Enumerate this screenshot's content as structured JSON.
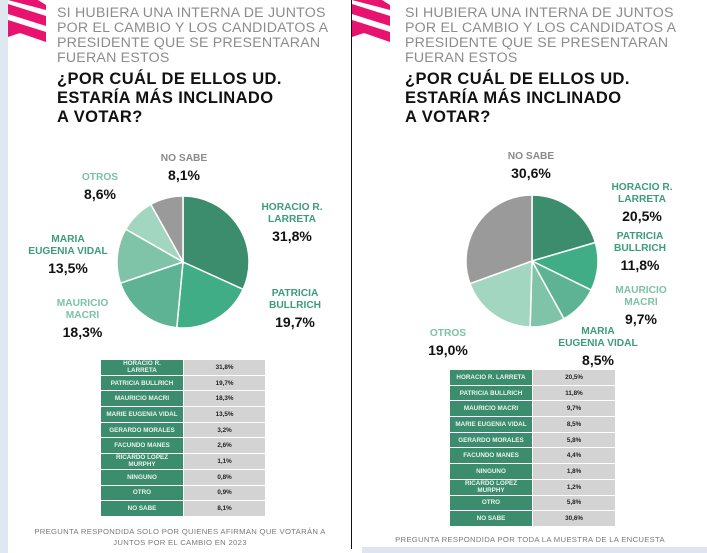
{
  "colors": {
    "accent_pink": "#e8126f",
    "slice_1": "#3b8d6e",
    "slice_2": "#41ad87",
    "slice_3": "#5db393",
    "slice_4": "#7fc4a8",
    "slice_5": "#a3d6c1",
    "slice_gray": "#9a9a9a",
    "label_green": "#3d9c7a",
    "label_light_green": "#7cc2a6",
    "label_gray": "#8a8a8a"
  },
  "panels": [
    {
      "intro": "SI HUBIERA UNA INTERNA DE JUNTOS\nPOR EL CAMBIO Y LOS CANDIDATOS A\nPRESIDENTE QUE SE PRESENTARAN\nFUERAN ESTOS",
      "question": "¿POR CUÁL DE ELLOS UD.\nESTARÍA MÁS  INCLINADO\nA VOTAR?",
      "footnote": "PREGUNTA RESPONDIDA SOLO POR QUIENES AFIRMAN QUE VOTARÁN A\nJUNTOS POR EL CAMBIO EN 2023",
      "table": [
        {
          "name": "HORACIO R.\nLARRETA",
          "value": "31,8%"
        },
        {
          "name": "PATRICIA BULLRICH",
          "value": "19,7%"
        },
        {
          "name": "MAURICIO MACRI",
          "value": "18,3%"
        },
        {
          "name": "MARIE EUGENIA VIDAL",
          "value": "13,5%"
        },
        {
          "name": "GERARDO MORALES",
          "value": "3,2%"
        },
        {
          "name": "FACUNDO MANES",
          "value": "2,6%"
        },
        {
          "name": "RICARDO LÓPEZ\nMURPHY",
          "value": "1,1%"
        },
        {
          "name": "NINGUNO",
          "value": "0,8%"
        },
        {
          "name": "OTRO",
          "value": "0,9%"
        },
        {
          "name": "NO SABE",
          "value": "8,1%"
        }
      ],
      "pie_labels": [
        {
          "name": "HORACIO R.\nLARRETA",
          "pct": "31,8%"
        },
        {
          "name": "PATRICIA\nBULLRICH",
          "pct": "19,7%"
        },
        {
          "name": "MAURICIO\nMACRI",
          "pct": "18,3%"
        },
        {
          "name": "MARIA\nEUGENIA VIDAL",
          "pct": "13,5%"
        },
        {
          "name": "OTROS",
          "pct": "8,6%"
        },
        {
          "name": "NO SABE",
          "pct": "8,1%"
        }
      ]
    },
    {
      "intro": "SI HUBIERA UNA INTERNA DE JUNTOS\nPOR EL CAMBIO Y LOS CANDIDATOS A\nPRESIDENTE QUE SE PRESENTARAN\nFUERAN ESTOS",
      "question": "¿POR CUÁL DE ELLOS UD.\nESTARÍA MÁS  INCLINADO\nA VOTAR?",
      "footnote": "PREGUNTA RESPONDIDA POR TODA LA MUESTRA DE LA ENCUESTA",
      "table": [
        {
          "name": "HORACIO R. LARRETA",
          "value": "20,5%"
        },
        {
          "name": "PATRICIA BULLRICH",
          "value": "11,8%"
        },
        {
          "name": "MAURICIO MACRI",
          "value": "9,7%"
        },
        {
          "name": "MARIE EUGENIA VIDAL",
          "value": "8,5%"
        },
        {
          "name": "GERARDO MORALES",
          "value": "5,8%"
        },
        {
          "name": "FACUNDO MANES",
          "value": "4,4%"
        },
        {
          "name": "NINGUNO",
          "value": "1,8%"
        },
        {
          "name": "RICARDO LÓPEZ\nMURPHY",
          "value": "1,2%"
        },
        {
          "name": "OTRO",
          "value": "5,8%"
        },
        {
          "name": "NO SABE",
          "value": "30,6%"
        }
      ],
      "pie_labels": [
        {
          "name": "HORACIO R.\nLARRETA",
          "pct": "20,5%"
        },
        {
          "name": "PATRICIA\nBULLRICH",
          "pct": "11,8%"
        },
        {
          "name": "MAURICIO\nMACRI",
          "pct": "9,7%"
        },
        {
          "name": "MARIA\nEUGENIA VIDAL",
          "pct": "8,5%"
        },
        {
          "name": "OTROS",
          "pct": "19,0%"
        },
        {
          "name": "NO SABE",
          "pct": "30,6%"
        }
      ]
    }
  ],
  "chart_data": [
    {
      "type": "pie",
      "title": "¿Por cuál de ellos Ud. estaría más inclinado a votar? (votantes de Juntos por el Cambio)",
      "categories": [
        "HORACIO R. LARRETA",
        "PATRICIA BULLRICH",
        "MAURICIO MACRI",
        "MARIA EUGENIA VIDAL",
        "OTROS",
        "NO SABE"
      ],
      "values": [
        31.8,
        19.7,
        18.3,
        13.5,
        8.6,
        8.1
      ],
      "start": "12 o'clock",
      "direction": "clockwise"
    },
    {
      "type": "pie",
      "title": "¿Por cuál de ellos Ud. estaría más inclinado a votar? (toda la muestra)",
      "categories": [
        "HORACIO R. LARRETA",
        "PATRICIA BULLRICH",
        "MAURICIO MACRI",
        "MARIA EUGENIA VIDAL",
        "OTROS",
        "NO SABE"
      ],
      "values": [
        20.5,
        11.8,
        9.7,
        8.5,
        19.0,
        30.6
      ],
      "start": "12 o'clock",
      "direction": "clockwise"
    }
  ]
}
